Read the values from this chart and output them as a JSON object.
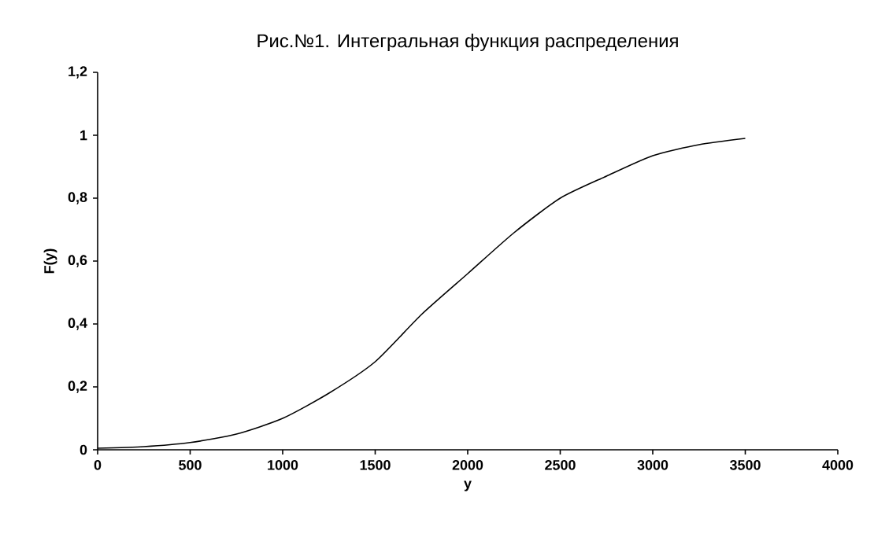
{
  "chart_data": {
    "type": "line",
    "title": "Рис.№1. Интегральная функция распределения",
    "xlabel": "y",
    "ylabel": "F(y)",
    "x": [
      0,
      250,
      500,
      750,
      1000,
      1250,
      1500,
      1750,
      2000,
      2250,
      2500,
      2750,
      3000,
      3250,
      3500
    ],
    "series": [
      {
        "color": "#000000",
        "values": [
          0.005,
          0.01,
          0.023,
          0.05,
          0.1,
          0.18,
          0.28,
          0.43,
          0.56,
          0.69,
          0.8,
          0.87,
          0.935,
          0.97,
          0.99
        ]
      }
    ],
    "xlim": [
      0,
      4000
    ],
    "xticks": [
      0,
      500,
      1000,
      1500,
      2000,
      2500,
      3000,
      3500,
      4000
    ],
    "ylim": [
      0,
      1.2
    ],
    "yticks": [
      0,
      {
        "value": 0.2,
        "label": "0,2"
      },
      {
        "value": 0.4,
        "label": "0,4"
      },
      {
        "value": 0.6,
        "label": "0,6"
      },
      {
        "value": 0.8,
        "label": "0,8"
      },
      1,
      {
        "value": 1.2,
        "label": "1,2"
      }
    ],
    "grid": false,
    "marker": "none",
    "line_style": "solid"
  }
}
